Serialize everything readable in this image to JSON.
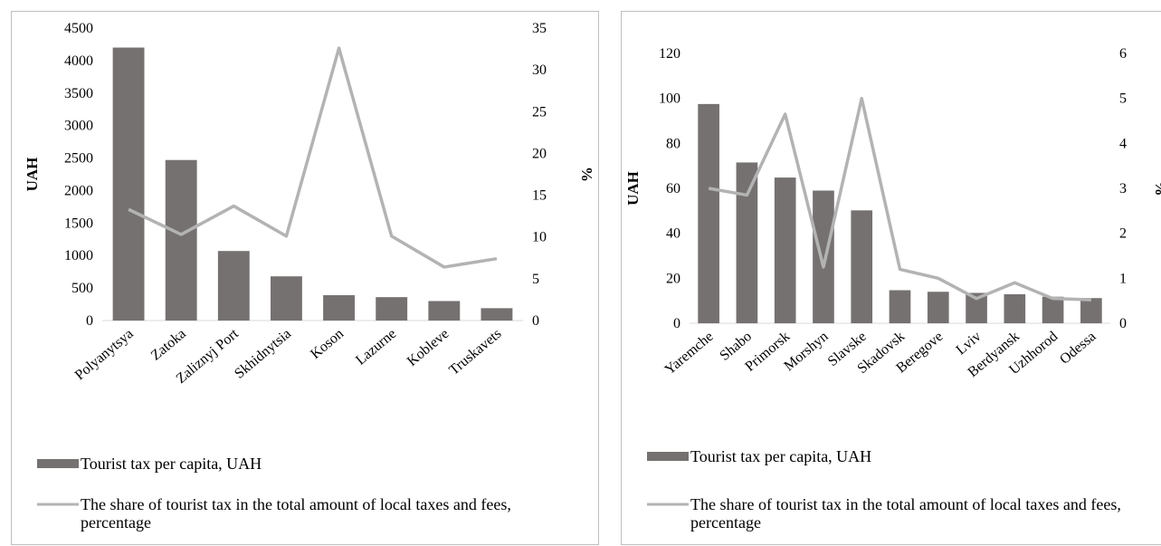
{
  "colors": {
    "bar": "#767171",
    "line": "#b3b3b3",
    "gridline": "#d9d9d9"
  },
  "chart_data": [
    {
      "type": "bar+line",
      "categories": [
        "Polyanytsya",
        "Zatoka",
        "Zaliznyj Port",
        "Skhidnytsia",
        "Koson",
        "Lazurne",
        "Kobleve",
        "Truskavets"
      ],
      "series": [
        {
          "name": "Tourist tax per capita, UAH",
          "type": "bar",
          "axis": "left",
          "values": [
            4200,
            2470,
            1070,
            680,
            390,
            360,
            300,
            190
          ]
        },
        {
          "name": "The share of tourist tax in the total amount of local taxes and fees, percentage",
          "type": "line",
          "axis": "right",
          "values": [
            13.3,
            10.3,
            13.7,
            10.1,
            32.6,
            10.1,
            6.4,
            7.4
          ]
        }
      ],
      "ylabel": "UAH",
      "y2label": "%",
      "ylim": [
        0,
        4500
      ],
      "y2lim": [
        0,
        35
      ],
      "yticks": [
        "0",
        "500",
        "1000",
        "1500",
        "2000",
        "2500",
        "3000",
        "3500",
        "4000",
        "4500"
      ],
      "y2ticks": [
        "0",
        "5",
        "10",
        "15",
        "20",
        "25",
        "30",
        "35"
      ],
      "grid": false,
      "legend": "bottom"
    },
    {
      "type": "bar+line",
      "categories": [
        "Yaremche",
        "Shabo",
        "Primorsk",
        "Morshyn",
        "Slavske",
        "Skadovsk",
        "Beregove",
        "Lviv",
        "Berdyansk",
        "Uzhhorod",
        "Odessa"
      ],
      "series": [
        {
          "name": "Tourist tax per capita, UAH",
          "type": "bar",
          "axis": "left",
          "values": [
            97.5,
            71.5,
            64.8,
            59,
            50.2,
            14.7,
            14,
            13.5,
            12.9,
            11.8,
            11.2
          ]
        },
        {
          "name": "The share of tourist tax in the total amount of local taxes and fees, percentage",
          "type": "line",
          "axis": "right",
          "values": [
            3.0,
            2.85,
            4.65,
            1.25,
            5.0,
            1.2,
            1.0,
            0.55,
            0.9,
            0.55,
            0.52
          ]
        }
      ],
      "ylabel": "UAH",
      "y2label": "%",
      "ylim": [
        0,
        120
      ],
      "y2lim": [
        0,
        6
      ],
      "yticks": [
        "0",
        "20",
        "40",
        "60",
        "80",
        "100",
        "120"
      ],
      "y2ticks": [
        "0",
        "1",
        "2",
        "3",
        "4",
        "5",
        "6"
      ],
      "grid": false,
      "legend": "bottom"
    }
  ]
}
